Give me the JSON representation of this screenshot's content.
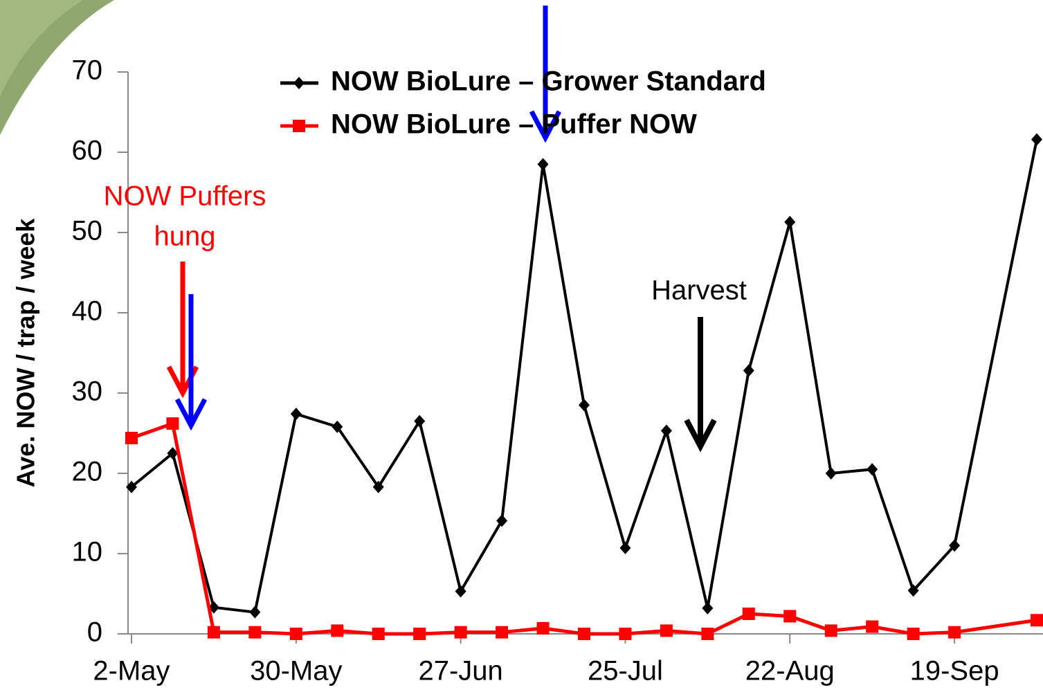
{
  "chart_data": {
    "type": "line",
    "y_label": "Ave. NOW / trap / week",
    "annotations": [
      "NOW Puffers",
      "hung",
      "Harvest"
    ],
    "x": [
      0,
      7,
      14,
      21,
      28,
      35,
      42,
      49,
      56,
      63,
      70,
      77,
      84,
      91,
      98,
      105,
      112,
      119,
      126,
      133,
      140,
      154
    ],
    "xlim": [
      0,
      155
    ],
    "xticks": [
      {
        "value": 0,
        "label": "2-May"
      },
      {
        "value": 28,
        "label": "30-May"
      },
      {
        "value": 56,
        "label": "27-Jun"
      },
      {
        "value": 84,
        "label": "25-Jul"
      },
      {
        "value": 112,
        "label": "22-Aug"
      },
      {
        "value": 140,
        "label": "19-Sep"
      }
    ],
    "ylim": [
      0,
      70
    ],
    "yticks": [
      0,
      10,
      20,
      30,
      40,
      50,
      60,
      70
    ],
    "series": [
      {
        "name": "NOW BioLure – Grower Standard",
        "color": "#000000",
        "marker": "diamond",
        "values": [
          18.3,
          22.5,
          3.3,
          2.7,
          27.4,
          25.8,
          18.3,
          26.5,
          5.3,
          14.1,
          58.5,
          28.5,
          10.7,
          25.3,
          3.2,
          32.8,
          51.3,
          20.0,
          20.5,
          5.4,
          11.0,
          61.6
        ]
      },
      {
        "name": "NOW BioLure – Puffer NOW",
        "color": "#ff0000",
        "marker": "square",
        "values": [
          24.4,
          26.2,
          0.2,
          0.2,
          0,
          0.4,
          0,
          0,
          0.2,
          0.2,
          0.7,
          0,
          0,
          0.4,
          0,
          2.5,
          2.2,
          0.4,
          0.9,
          0,
          0.2,
          1.7
        ]
      }
    ]
  }
}
